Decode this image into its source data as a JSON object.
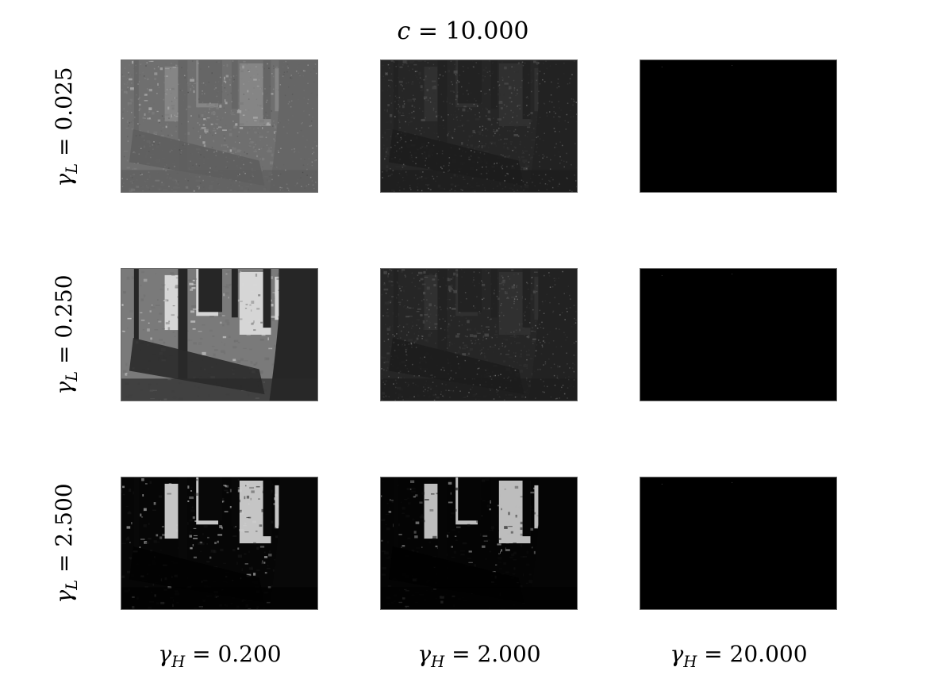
{
  "figure": {
    "title": {
      "var": "c",
      "eq": " = ",
      "value": "10.000"
    },
    "row_labels": [
      {
        "var": "γ",
        "sub": "L",
        "eq": " = ",
        "value": "0.025"
      },
      {
        "var": "γ",
        "sub": "L",
        "eq": " = ",
        "value": "0.250"
      },
      {
        "var": "γ",
        "sub": "L",
        "eq": " = ",
        "value": "2.500"
      }
    ],
    "col_labels": [
      {
        "var": "γ",
        "sub": "H",
        "eq": " = ",
        "value": "0.200"
      },
      {
        "var": "γ",
        "sub": "H",
        "eq": " = ",
        "value": "2.000"
      },
      {
        "var": "γ",
        "sub": "H",
        "eq": " = ",
        "value": "20.000"
      }
    ],
    "images": [
      {
        "row": 0,
        "col": 0,
        "content": "forest-photo",
        "tone": "mid-gray-noisy"
      },
      {
        "row": 0,
        "col": 1,
        "content": "forest-photo",
        "tone": "dark-gray-noisy"
      },
      {
        "row": 0,
        "col": 2,
        "content": "forest-photo",
        "tone": "black"
      },
      {
        "row": 1,
        "col": 0,
        "content": "forest-photo",
        "tone": "normal"
      },
      {
        "row": 1,
        "col": 1,
        "content": "forest-photo",
        "tone": "dark-gray-noisy"
      },
      {
        "row": 1,
        "col": 2,
        "content": "forest-photo",
        "tone": "black"
      },
      {
        "row": 2,
        "col": 0,
        "content": "forest-photo",
        "tone": "dark-high-contrast"
      },
      {
        "row": 2,
        "col": 1,
        "content": "forest-photo",
        "tone": "darker-high-contrast"
      },
      {
        "row": 2,
        "col": 2,
        "content": "forest-photo",
        "tone": "black"
      }
    ]
  }
}
